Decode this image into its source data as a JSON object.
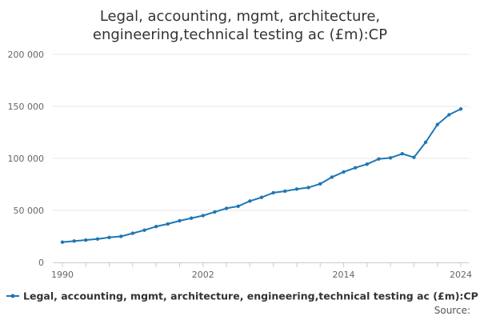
{
  "chart_data": {
    "type": "line",
    "title_lines": [
      "Legal, accounting, mgmt, architecture,",
      "engineering,technical testing ac (£m):CP"
    ],
    "xlabel": "",
    "ylabel": "",
    "ylim": [
      0,
      200000
    ],
    "xlim": [
      1990,
      2024
    ],
    "y_ticks": [
      0,
      50000,
      100000,
      150000,
      200000
    ],
    "y_tick_labels": [
      "0",
      "50 000",
      "100 000",
      "150 000",
      "200 000"
    ],
    "x_tick_labels": [
      "1990",
      "2002",
      "2014",
      "2024"
    ],
    "x_tick_label_positions": [
      1990,
      2002,
      2014,
      2024
    ],
    "grid": true,
    "series": [
      {
        "name": "Legal, accounting, mgmt, architecture, engineering,technical testing ac (£m):CP",
        "color": "#1f77b4",
        "x": [
          1990,
          1991,
          1992,
          1993,
          1994,
          1995,
          1996,
          1997,
          1998,
          1999,
          2000,
          2001,
          2002,
          2003,
          2004,
          2005,
          2006,
          2007,
          2008,
          2009,
          2010,
          2011,
          2012,
          2013,
          2014,
          2015,
          2016,
          2017,
          2018,
          2019,
          2020,
          2021,
          2022,
          2023,
          2024
        ],
        "values": [
          19500,
          20500,
          21500,
          22500,
          24000,
          25000,
          28000,
          31000,
          34500,
          37000,
          40000,
          42500,
          45000,
          48500,
          52000,
          54000,
          59000,
          62500,
          67000,
          68500,
          70500,
          72000,
          75500,
          82000,
          87000,
          91000,
          94500,
          99500,
          100500,
          104500,
          101000,
          115500,
          132500,
          142000,
          147500
        ]
      }
    ],
    "legend": {
      "position": "bottom",
      "label": "Legal, accounting, mgmt, architecture, engineering,technical testing ac (£m):CP"
    },
    "source_label": "Source:"
  }
}
